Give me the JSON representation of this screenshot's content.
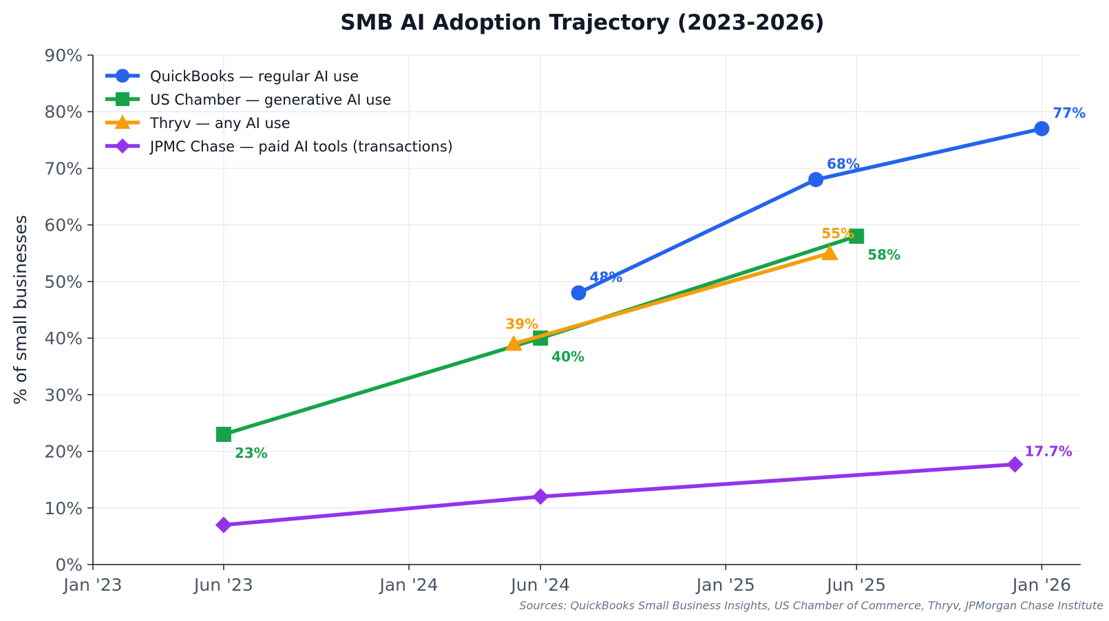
{
  "chart_data": {
    "type": "line",
    "title": "SMB AI Adoption Trajectory (2023-2026)",
    "xlabel": "",
    "ylabel": "% of small businesses",
    "x_ticks": [
      "Jan '23",
      "Jun '23",
      "Jan '24",
      "Jun '24",
      "Jan '25",
      "Jun '25",
      "Jan '26"
    ],
    "x_tick_dates": [
      "2023-01-01",
      "2023-06-01",
      "2024-01-01",
      "2024-06-01",
      "2025-01-01",
      "2025-06-01",
      "2026-01-01"
    ],
    "xlim": [
      "2023-01-01",
      "2026-02-15"
    ],
    "y_ticks": [
      "0%",
      "10%",
      "20%",
      "30%",
      "40%",
      "50%",
      "60%",
      "70%",
      "80%",
      "90%"
    ],
    "ylim": [
      0,
      90
    ],
    "grid": true,
    "legend_position": "top-left",
    "source": "Sources: QuickBooks Small Business Insights, US Chamber of Commerce, Thryv, JPMorgan Chase Institute",
    "series": [
      {
        "name": "QuickBooks — regular AI use",
        "color": "#2563eb",
        "marker": "circle",
        "points": [
          {
            "x": "2024-07-15",
            "y": 48,
            "label": "48%"
          },
          {
            "x": "2025-04-15",
            "y": 68,
            "label": "68%"
          },
          {
            "x": "2026-01-01",
            "y": 77,
            "label": "77%"
          }
        ]
      },
      {
        "name": "US Chamber — generative AI use",
        "color": "#16a34a",
        "marker": "square",
        "points": [
          {
            "x": "2023-06-01",
            "y": 23,
            "label": "23%"
          },
          {
            "x": "2024-06-01",
            "y": 40,
            "label": "40%"
          },
          {
            "x": "2025-06-01",
            "y": 58,
            "label": "58%"
          }
        ]
      },
      {
        "name": "Thryv — any AI use",
        "color": "#f59e0b",
        "marker": "triangle",
        "points": [
          {
            "x": "2024-05-01",
            "y": 39,
            "label": "39%"
          },
          {
            "x": "2025-05-01",
            "y": 55,
            "label": "55%"
          }
        ]
      },
      {
        "name": "JPMC Chase — paid AI tools (transactions)",
        "color": "#9333ea",
        "marker": "diamond",
        "points": [
          {
            "x": "2023-06-01",
            "y": 7
          },
          {
            "x": "2024-06-01",
            "y": 12
          },
          {
            "x": "2025-12-01",
            "y": 17.7,
            "label": "17.7%"
          }
        ]
      }
    ]
  }
}
